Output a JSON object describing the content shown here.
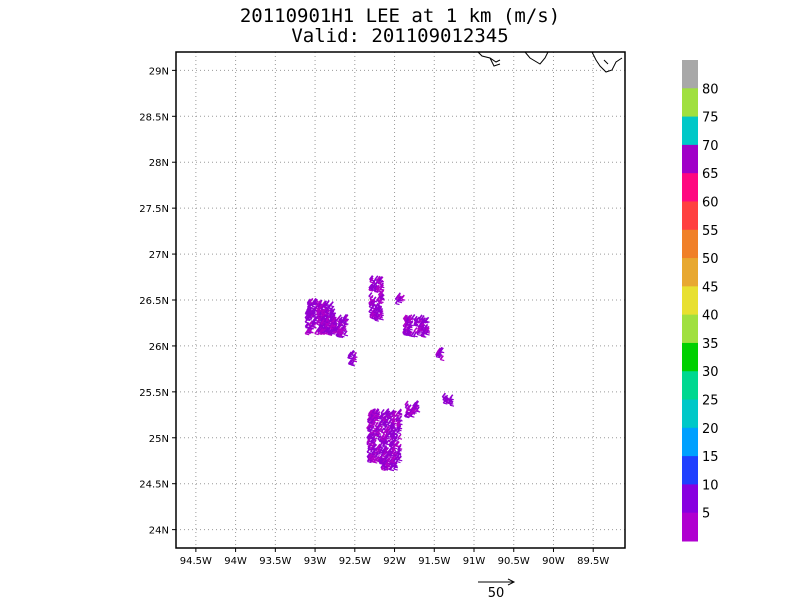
{
  "title": {
    "line1": "20110901H1 LEE at 1 km (m/s)",
    "line2": "Valid: 201109012345"
  },
  "axes": {
    "lon_ticks": [
      "94.5W",
      "94W",
      "93.5W",
      "93W",
      "92.5W",
      "92W",
      "91.5W",
      "91W",
      "90.5W",
      "90W",
      "89.5W"
    ],
    "lat_ticks": [
      "29N",
      "28.5N",
      "28N",
      "27.5N",
      "27N",
      "26.5N",
      "26N",
      "25.5N",
      "25N",
      "24.5N",
      "24N"
    ],
    "lon_values": [
      -94.5,
      -94,
      -93.5,
      -93,
      -92.5,
      -92,
      -91.5,
      -91,
      -90.5,
      -90,
      -89.5
    ],
    "lat_values": [
      29,
      28.5,
      28,
      27.5,
      27,
      26.5,
      26,
      25.5,
      25,
      24.5,
      24
    ],
    "lon_range": [
      -94.75,
      -89.1
    ],
    "lat_range": [
      23.8,
      29.2
    ],
    "grid": true
  },
  "colorbar": {
    "labels": [
      "5",
      "10",
      "15",
      "20",
      "25",
      "30",
      "35",
      "40",
      "45",
      "50",
      "55",
      "60",
      "65",
      "70",
      "75",
      "80"
    ],
    "colors": [
      "#b000d0",
      "#8800e0",
      "#2040ff",
      "#00a0ff",
      "#00c8c8",
      "#00d890",
      "#00d000",
      "#a0e040",
      "#e8e030",
      "#e8a830",
      "#f08028",
      "#ff4040",
      "#ff0880",
      "#a000c8",
      "#00c8c8",
      "#a0e040",
      "#a8a8a8"
    ]
  },
  "reference_vector": {
    "label": "50"
  },
  "wind_clusters": [
    {
      "lon": -92.95,
      "lat": 26.3,
      "w": 0.35,
      "h": 0.35
    },
    {
      "lon": -92.8,
      "lat": 26.2,
      "w": 0.35,
      "h": 0.2
    },
    {
      "lon": -92.25,
      "lat": 26.5,
      "w": 0.15,
      "h": 0.45
    },
    {
      "lon": -92.55,
      "lat": 25.85,
      "w": 0.08,
      "h": 0.12
    },
    {
      "lon": -91.75,
      "lat": 26.2,
      "w": 0.3,
      "h": 0.2
    },
    {
      "lon": -91.95,
      "lat": 26.5,
      "w": 0.08,
      "h": 0.08
    },
    {
      "lon": -91.45,
      "lat": 25.9,
      "w": 0.08,
      "h": 0.1
    },
    {
      "lon": -92.15,
      "lat": 25.0,
      "w": 0.4,
      "h": 0.55
    },
    {
      "lon": -91.8,
      "lat": 25.3,
      "w": 0.15,
      "h": 0.15
    },
    {
      "lon": -91.35,
      "lat": 25.4,
      "w": 0.1,
      "h": 0.1
    },
    {
      "lon": -92.1,
      "lat": 24.7,
      "w": 0.2,
      "h": 0.1
    }
  ]
}
